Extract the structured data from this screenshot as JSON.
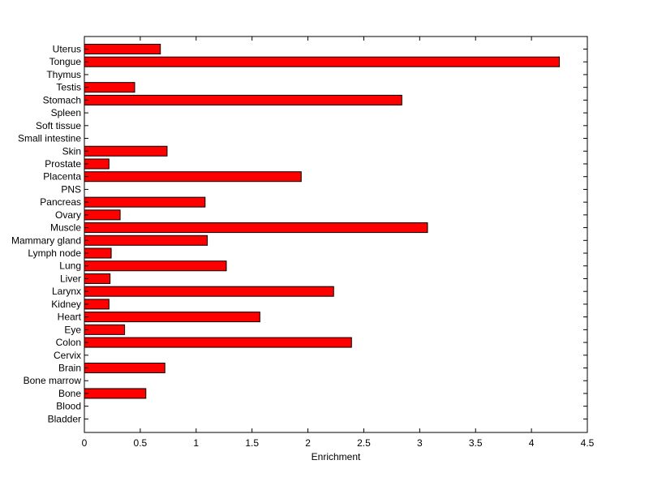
{
  "chart_data": {
    "type": "bar",
    "orientation": "horizontal",
    "title": "",
    "xlabel": "Enrichment",
    "ylabel": "",
    "xlim": [
      0,
      4.5
    ],
    "xticks": [
      0,
      0.5,
      1,
      1.5,
      2,
      2.5,
      3,
      3.5,
      4,
      4.5
    ],
    "xtick_labels": [
      "0",
      "0.5",
      "1",
      "1.5",
      "2",
      "2.5",
      "3",
      "3.5",
      "4",
      "4.5"
    ],
    "grid": false,
    "legend": "none",
    "bar_color": "#ff0000",
    "bar_edge_color": "#000000",
    "categories": [
      "Uterus",
      "Tongue",
      "Thymus",
      "Testis",
      "Stomach",
      "Spleen",
      "Soft tissue",
      "Small intestine",
      "Skin",
      "Prostate",
      "Placenta",
      "PNS",
      "Pancreas",
      "Ovary",
      "Muscle",
      "Mammary gland",
      "Lymph node",
      "Lung",
      "Liver",
      "Larynx",
      "Kidney",
      "Heart",
      "Eye",
      "Colon",
      "Cervix",
      "Brain",
      "Bone marrow",
      "Bone",
      "Blood",
      "Bladder"
    ],
    "values": [
      0.68,
      4.25,
      0,
      0.45,
      2.84,
      0,
      0,
      0,
      0.74,
      0.22,
      1.94,
      0,
      1.08,
      0.32,
      3.07,
      1.1,
      0.24,
      1.27,
      0.23,
      2.23,
      0.22,
      1.57,
      0.36,
      2.39,
      0,
      0.72,
      0,
      0.55,
      0,
      0
    ]
  }
}
